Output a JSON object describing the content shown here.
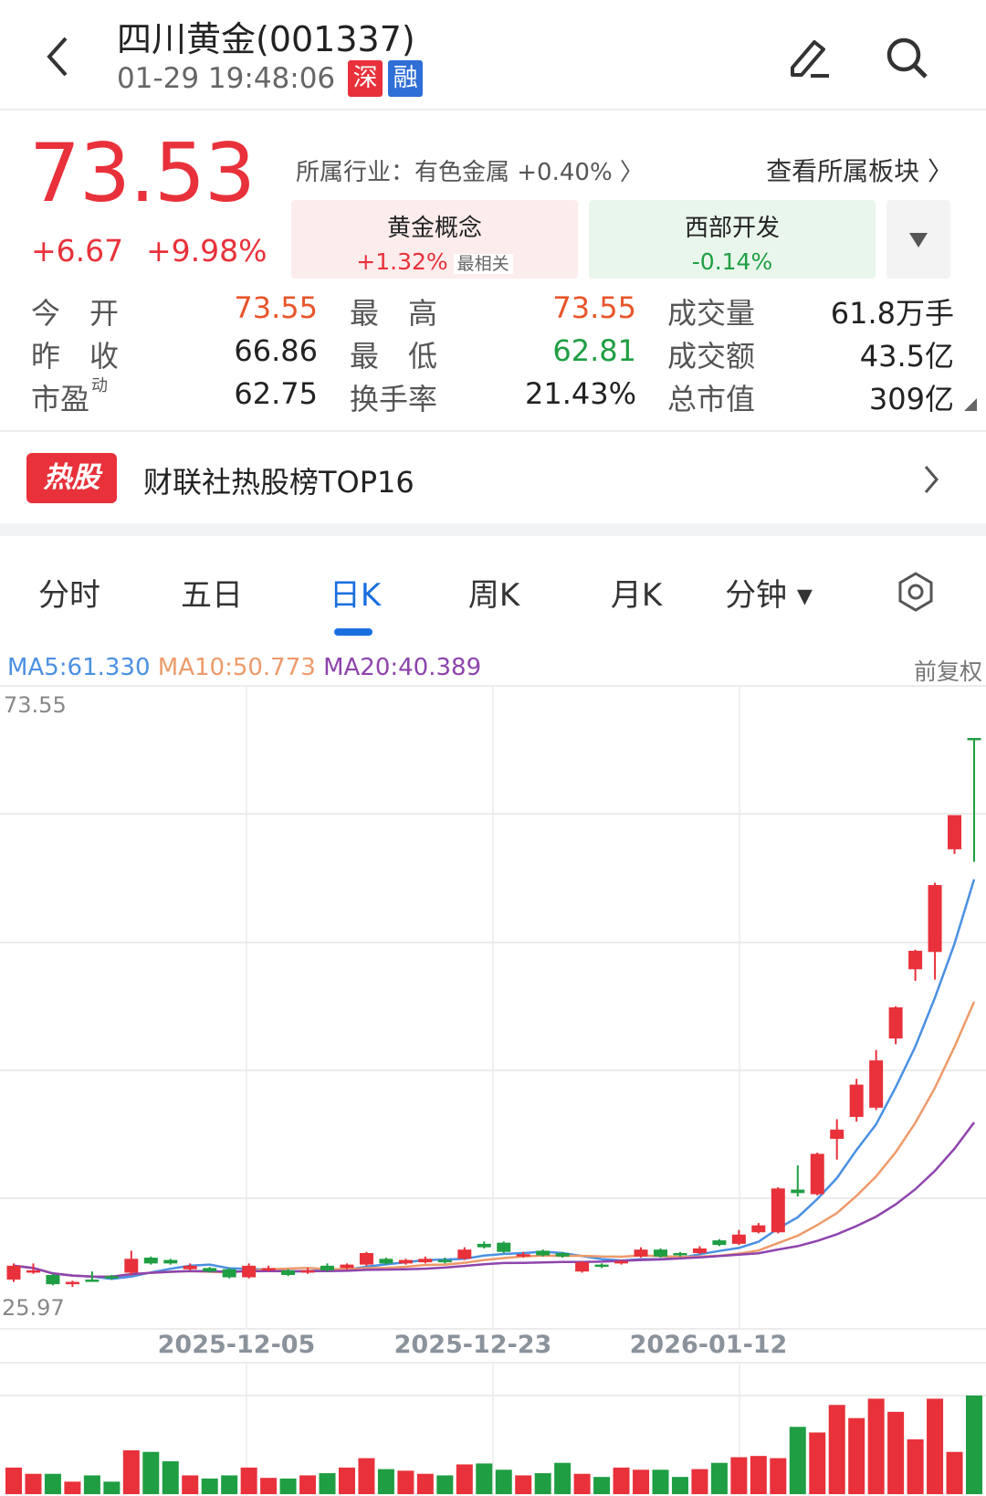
{
  "header": {
    "title": "四川黄金(001337)",
    "timestamp": "01-29 19:48:06",
    "tags": [
      {
        "label": "深",
        "color": "#e8313a"
      },
      {
        "label": "融",
        "color": "#2f6fd6"
      }
    ],
    "icons": [
      "back-icon",
      "edit-icon",
      "search-icon"
    ]
  },
  "quote": {
    "price": "73.53",
    "change": "+6.67",
    "change_pct": "+9.98%",
    "industry": "所属行业：有色金属 +0.40% 〉",
    "view_sectors": "查看所属板块 〉",
    "concepts": [
      {
        "name": "黄金概念",
        "change": "+1.32%",
        "badge": "最相关",
        "color": "#e8313a"
      },
      {
        "name": "西部开发",
        "change": "-0.14%",
        "color": "#1f9e43"
      }
    ],
    "stats": [
      [
        {
          "label": "今　开",
          "value": "73.55",
          "color": "#e8552a"
        },
        {
          "label": "最　高",
          "value": "73.55",
          "color": "#e8552a"
        },
        {
          "label": "成交量",
          "value": "61.8万手"
        }
      ],
      [
        {
          "label": "昨　收",
          "value": "66.86"
        },
        {
          "label": "最　低",
          "value": "62.81",
          "color": "#1f9e43"
        },
        {
          "label": "成交额",
          "value": "43.5亿"
        }
      ],
      [
        {
          "label": "市盈",
          "sup": "动",
          "value": "62.75"
        },
        {
          "label": "换手率",
          "value": "21.43%"
        },
        {
          "label": "总市值",
          "value": "309亿"
        }
      ]
    ]
  },
  "hot": {
    "badge": "热股",
    "text": "财联社热股榜TOP16"
  },
  "tabs": [
    {
      "label": "分时"
    },
    {
      "label": "五日"
    },
    {
      "label": "日K",
      "active": true
    },
    {
      "label": "周K"
    },
    {
      "label": "月K"
    },
    {
      "label": "分钟 ▾"
    }
  ],
  "chart_data": {
    "type": "candlestick",
    "ma_legend": [
      {
        "label": "MA5:61.330",
        "color": "#4a90e2"
      },
      {
        "label": "MA10:50.773",
        "color": "#ee9a6a"
      },
      {
        "label": "MA20:40.389",
        "color": "#8e44ad"
      }
    ],
    "adjust": "前复权",
    "y_max_label": "73.55",
    "y_min_label": "25.97",
    "ylim": [
      25.97,
      73.55
    ],
    "x_tick_labels": [
      "2025-12-05",
      "2025-12-23",
      "2026-01-12"
    ],
    "up_color": "#e8313a",
    "down_color": "#1f9e43",
    "ohlc": [
      [
        26.6,
        28.0,
        26.4,
        27.8
      ],
      [
        27.3,
        28.0,
        27.1,
        27.4
      ],
      [
        27.0,
        27.1,
        26.1,
        26.2
      ],
      [
        26.2,
        26.5,
        25.97,
        26.4
      ],
      [
        26.6,
        27.3,
        26.5,
        26.5
      ],
      [
        26.9,
        27.0,
        26.6,
        26.8
      ],
      [
        27.2,
        29.1,
        27.0,
        28.4
      ],
      [
        28.5,
        28.6,
        27.9,
        28.0
      ],
      [
        28.3,
        28.4,
        27.9,
        28.0
      ],
      [
        27.5,
        28.0,
        27.4,
        27.8
      ],
      [
        27.6,
        27.7,
        27.2,
        27.3
      ],
      [
        27.5,
        27.6,
        26.7,
        26.8
      ],
      [
        26.8,
        28.0,
        26.7,
        27.8
      ],
      [
        27.4,
        27.8,
        27.3,
        27.6
      ],
      [
        27.4,
        27.5,
        26.9,
        27.0
      ],
      [
        27.2,
        27.6,
        27.1,
        27.4
      ],
      [
        27.8,
        28.0,
        27.3,
        27.4
      ],
      [
        27.6,
        28.0,
        27.5,
        27.9
      ],
      [
        27.9,
        29.0,
        27.8,
        28.9
      ],
      [
        28.4,
        28.5,
        27.9,
        28.0
      ],
      [
        28.0,
        28.4,
        27.9,
        28.3
      ],
      [
        28.1,
        28.6,
        28.0,
        28.4
      ],
      [
        28.3,
        28.5,
        28.0,
        28.1
      ],
      [
        28.4,
        29.4,
        28.3,
        29.2
      ],
      [
        29.7,
        29.9,
        29.3,
        29.4
      ],
      [
        29.8,
        29.9,
        28.9,
        29.0
      ],
      [
        28.6,
        29.0,
        28.5,
        28.8
      ],
      [
        29.1,
        29.2,
        28.6,
        28.7
      ],
      [
        28.9,
        29.0,
        28.5,
        28.6
      ],
      [
        27.3,
        28.2,
        27.2,
        28.1
      ],
      [
        27.9,
        28.0,
        27.6,
        27.7
      ],
      [
        28.0,
        28.3,
        27.9,
        28.2
      ],
      [
        28.6,
        29.4,
        28.5,
        29.2
      ],
      [
        29.2,
        29.3,
        28.5,
        28.6
      ],
      [
        28.9,
        29.0,
        28.6,
        28.7
      ],
      [
        28.9,
        29.5,
        28.8,
        29.3
      ],
      [
        30.0,
        30.1,
        29.5,
        29.6
      ],
      [
        29.7,
        30.9,
        29.6,
        30.5
      ],
      [
        30.7,
        31.5,
        30.6,
        31.3
      ],
      [
        30.7,
        34.6,
        30.6,
        34.5
      ],
      [
        34.4,
        36.5,
        33.8,
        34.1
      ],
      [
        34.0,
        37.6,
        33.9,
        37.5
      ],
      [
        38.8,
        40.5,
        37.0,
        39.6
      ],
      [
        40.7,
        44.0,
        40.3,
        43.5
      ],
      [
        41.5,
        46.5,
        41.3,
        45.6
      ],
      [
        47.5,
        50.3,
        47.0,
        50.2
      ],
      [
        53.5,
        55.2,
        52.5,
        55.1
      ],
      [
        55.0,
        61.0,
        52.6,
        60.8
      ],
      [
        63.9,
        66.86,
        63.5,
        66.86
      ],
      [
        73.55,
        73.55,
        62.81,
        73.53
      ]
    ],
    "volume": [
      85,
      65,
      65,
      40,
      60,
      40,
      140,
      135,
      105,
      60,
      50,
      60,
      85,
      52,
      50,
      60,
      67,
      85,
      115,
      80,
      75,
      65,
      60,
      95,
      98,
      78,
      60,
      67,
      100,
      65,
      55,
      85,
      78,
      78,
      55,
      80,
      100,
      118,
      122,
      115,
      215,
      197,
      285,
      243,
      305,
      263,
      175,
      305,
      135,
      315
    ]
  }
}
